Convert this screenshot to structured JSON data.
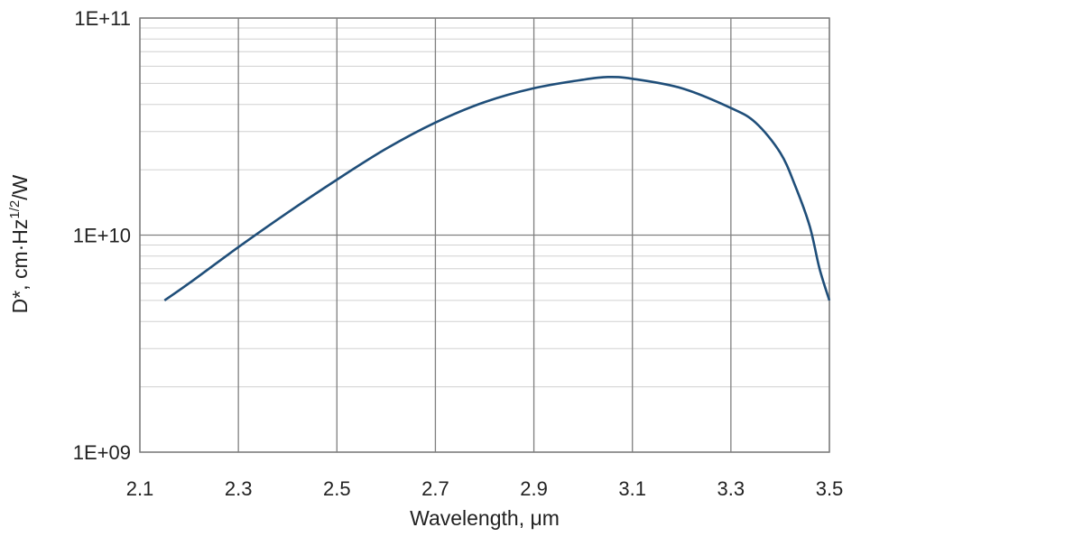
{
  "chart_data": {
    "type": "line",
    "title": "",
    "xlabel": "Wavelength, μm",
    "ylabel_main": "D*, cm·Hz",
    "ylabel_sup": "1/2",
    "ylabel_tail": "/W",
    "xlim": [
      2.1,
      3.5
    ],
    "ylim": [
      1000000000,
      100000000000
    ],
    "y_scale": "log",
    "x_ticks": [
      2.1,
      2.3,
      2.5,
      2.7,
      2.9,
      3.1,
      3.3,
      3.5
    ],
    "x_tick_labels": [
      "2.1",
      "2.3",
      "2.5",
      "2.7",
      "2.9",
      "3.1",
      "3.3",
      "3.5"
    ],
    "y_ticks": [
      1000000000,
      10000000000,
      100000000000
    ],
    "y_tick_labels": [
      "1E+09",
      "1E+10",
      "1E+11"
    ],
    "grid": true,
    "legend": "none",
    "series": [
      {
        "color": "#1f4e79",
        "x": [
          2.15,
          2.2,
          2.3,
          2.4,
          2.5,
          2.6,
          2.7,
          2.8,
          2.9,
          3.0,
          3.05,
          3.1,
          3.2,
          3.3,
          3.35,
          3.4,
          3.43,
          3.46,
          3.48,
          3.5
        ],
        "y": [
          5000000000.0,
          6000000000.0,
          8800000000.0,
          12700000000.0,
          18000000000.0,
          25000000000.0,
          33000000000.0,
          41000000000.0,
          47500000000.0,
          52000000000.0,
          53500000000.0,
          52500000000.0,
          47500000000.0,
          38500000000.0,
          33000000000.0,
          24000000000.0,
          17000000000.0,
          11000000000.0,
          7000000000.0,
          5000000000.0
        ]
      }
    ]
  }
}
